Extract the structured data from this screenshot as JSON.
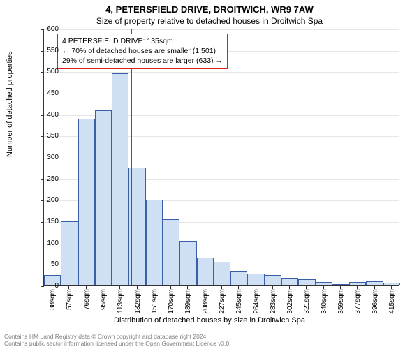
{
  "title_main": "4, PETERSFIELD DRIVE, DROITWICH, WR9 7AW",
  "title_sub": "Size of property relative to detached houses in Droitwich Spa",
  "ylabel": "Number of detached properties",
  "xlabel": "Distribution of detached houses by size in Droitwich Spa",
  "chart": {
    "type": "histogram",
    "background_color": "#ffffff",
    "grid_color": "#e6e6e6",
    "axis_color": "#333333",
    "bar_fill": "#cfe0f5",
    "bar_border": "#3a5fa8",
    "refline_color": "#d91e1e",
    "refline_value": 135,
    "x_start": 38,
    "x_step": 19,
    "ylim": [
      0,
      600
    ],
    "ytick_step": 50,
    "bar_width_ratio": 1.0,
    "label_fontsize": 11,
    "tick_fontsize": 10,
    "categories": [
      "38sqm",
      "57sqm",
      "76sqm",
      "95sqm",
      "113sqm",
      "132sqm",
      "151sqm",
      "170sqm",
      "189sqm",
      "208sqm",
      "227sqm",
      "245sqm",
      "264sqm",
      "283sqm",
      "302sqm",
      "321sqm",
      "340sqm",
      "359sqm",
      "377sqm",
      "396sqm",
      "415sqm"
    ],
    "values": [
      25,
      150,
      390,
      410,
      495,
      275,
      200,
      155,
      105,
      65,
      55,
      35,
      28,
      25,
      18,
      15,
      8,
      4,
      8,
      10,
      6
    ]
  },
  "infobox": {
    "border_color": "#d91e1e",
    "line1": "4 PETERSFIELD DRIVE: 135sqm",
    "line2": "← 70% of detached houses are smaller (1,501)",
    "line3": "29% of semi-detached houses are larger (633) →"
  },
  "footer": {
    "line1": "Contains HM Land Registry data © Crown copyright and database right 2024.",
    "line2": "Contains public sector information licensed under the Open Government Licence v3.0."
  }
}
